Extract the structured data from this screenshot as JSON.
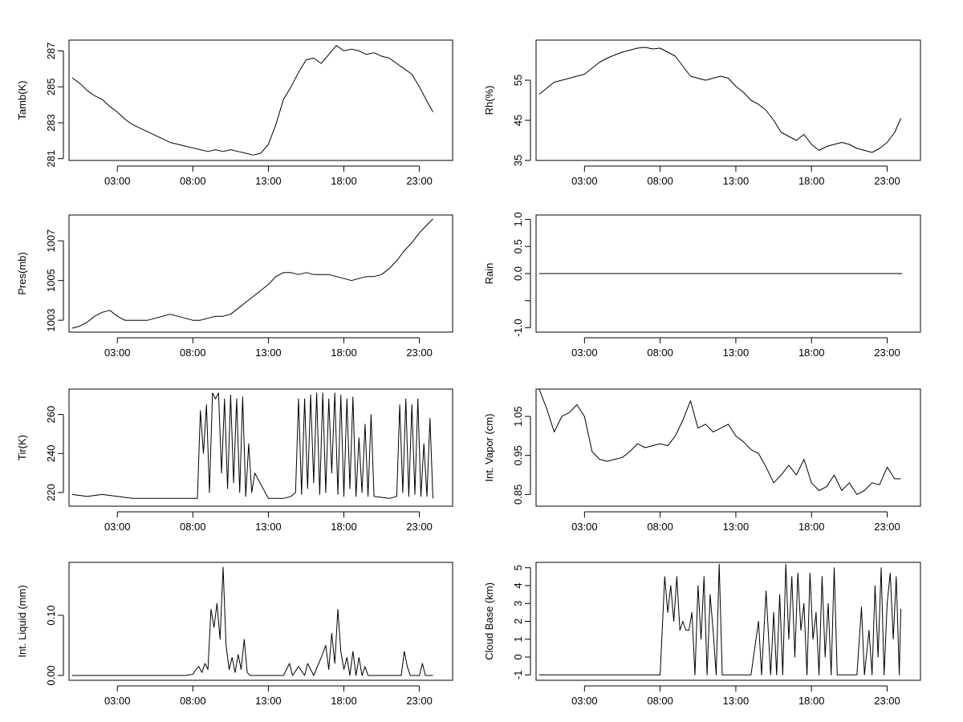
{
  "chart_data": [
    {
      "type": "line",
      "ylabel": "Tamb(K)",
      "x_tick_labels": [
        "03:00",
        "08:00",
        "13:00",
        "18:00",
        "23:00"
      ],
      "x_ticks": [
        3,
        8,
        13,
        18,
        23
      ],
      "xlim": [
        -0.2,
        25.2
      ],
      "ylim": [
        280.9,
        287.6
      ],
      "y_ticks": [
        281,
        283,
        285,
        287
      ],
      "y_tick_labels": [
        "281",
        "283",
        "285",
        "287"
      ],
      "series": [
        {
          "x": [
            0.0,
            0.5,
            1.0,
            1.5,
            2.0,
            2.5,
            3.0,
            3.5,
            4.0,
            4.5,
            5.0,
            5.5,
            6.0,
            6.5,
            7.0,
            7.5,
            8.0,
            8.5,
            9.0,
            9.5,
            10.0,
            10.5,
            11.0,
            11.5,
            12.0,
            12.5,
            13.0,
            13.5,
            14.0,
            14.5,
            15.0,
            15.5,
            16.0,
            16.5,
            17.0,
            17.5,
            18.0,
            18.5,
            19.0,
            19.5,
            20.0,
            20.5,
            21.0,
            21.5,
            22.0,
            22.5,
            23.0,
            23.5,
            23.9
          ],
          "values": [
            285.5,
            285.2,
            284.8,
            284.5,
            284.3,
            283.9,
            283.6,
            283.2,
            282.9,
            282.7,
            282.5,
            282.3,
            282.1,
            281.9,
            281.8,
            281.7,
            281.6,
            281.5,
            281.4,
            281.5,
            281.4,
            281.5,
            281.4,
            281.3,
            281.2,
            281.3,
            281.8,
            282.9,
            284.3,
            285.0,
            285.8,
            286.5,
            286.6,
            286.3,
            286.8,
            287.3,
            287.0,
            287.1,
            287.0,
            286.8,
            286.9,
            286.7,
            286.6,
            286.3,
            286.0,
            285.7,
            285.0,
            284.2,
            283.6
          ]
        }
      ]
    },
    {
      "type": "line",
      "ylabel": "Rh(%)",
      "x_tick_labels": [
        "03:00",
        "08:00",
        "13:00",
        "18:00",
        "23:00"
      ],
      "x_ticks": [
        3,
        8,
        13,
        18,
        23
      ],
      "xlim": [
        -0.2,
        25.2
      ],
      "ylim": [
        35,
        65
      ],
      "y_ticks": [
        35,
        45,
        55
      ],
      "y_tick_labels": [
        "35",
        "45",
        "55"
      ],
      "series": [
        {
          "x": [
            0.0,
            0.5,
            1.0,
            1.5,
            2.0,
            2.5,
            3.0,
            3.5,
            4.0,
            4.5,
            5.0,
            5.5,
            6.0,
            6.5,
            7.0,
            7.5,
            8.0,
            8.5,
            9.0,
            9.5,
            10.0,
            10.5,
            11.0,
            11.5,
            12.0,
            12.5,
            13.0,
            13.5,
            14.0,
            14.5,
            15.0,
            15.5,
            16.0,
            16.5,
            17.0,
            17.5,
            18.0,
            18.5,
            19.0,
            19.5,
            20.0,
            20.5,
            21.0,
            21.5,
            22.0,
            22.5,
            23.0,
            23.5,
            23.9
          ],
          "values": [
            51.5,
            53.0,
            54.5,
            55.0,
            55.5,
            56.0,
            56.5,
            58.0,
            59.5,
            60.5,
            61.3,
            62.0,
            62.5,
            63.0,
            63.2,
            62.8,
            63.0,
            62.0,
            61.0,
            58.5,
            56.0,
            55.5,
            55.0,
            55.5,
            56.0,
            55.5,
            53.5,
            52.0,
            50.0,
            49.0,
            47.5,
            45.0,
            42.0,
            41.0,
            40.0,
            41.5,
            39.0,
            37.5,
            38.5,
            39.0,
            39.5,
            39.0,
            38.0,
            37.5,
            37.0,
            38.0,
            39.5,
            42.0,
            45.5
          ]
        }
      ]
    },
    {
      "type": "line",
      "ylabel": "Pres(mb)",
      "x_tick_labels": [
        "03:00",
        "08:00",
        "13:00",
        "18:00",
        "23:00"
      ],
      "x_ticks": [
        3,
        8,
        13,
        18,
        23
      ],
      "xlim": [
        -0.2,
        25.2
      ],
      "ylim": [
        1002.4,
        1008.3
      ],
      "y_ticks": [
        1003,
        1005,
        1007
      ],
      "y_tick_labels": [
        "1003",
        "1005",
        "1007"
      ],
      "series": [
        {
          "x": [
            0.0,
            0.5,
            1.0,
            1.5,
            2.0,
            2.5,
            3.0,
            3.5,
            4.0,
            4.5,
            5.0,
            5.5,
            6.0,
            6.5,
            7.0,
            7.5,
            8.0,
            8.5,
            9.0,
            9.5,
            10.0,
            10.5,
            11.0,
            11.5,
            12.0,
            12.5,
            13.0,
            13.5,
            14.0,
            14.5,
            15.0,
            15.5,
            16.0,
            16.5,
            17.0,
            17.5,
            18.0,
            18.5,
            19.0,
            19.5,
            20.0,
            20.5,
            21.0,
            21.5,
            22.0,
            22.5,
            23.0,
            23.5,
            23.9
          ],
          "values": [
            1002.6,
            1002.7,
            1002.9,
            1003.2,
            1003.4,
            1003.5,
            1003.2,
            1003.0,
            1003.0,
            1003.0,
            1003.0,
            1003.1,
            1003.2,
            1003.3,
            1003.2,
            1003.1,
            1003.0,
            1003.0,
            1003.1,
            1003.2,
            1003.2,
            1003.3,
            1003.6,
            1003.9,
            1004.2,
            1004.5,
            1004.8,
            1005.2,
            1005.4,
            1005.4,
            1005.3,
            1005.4,
            1005.3,
            1005.3,
            1005.3,
            1005.2,
            1005.1,
            1005.0,
            1005.1,
            1005.2,
            1005.2,
            1005.3,
            1005.6,
            1006.0,
            1006.5,
            1006.9,
            1007.4,
            1007.8,
            1008.1
          ]
        }
      ]
    },
    {
      "type": "line",
      "ylabel": "Rain",
      "x_tick_labels": [
        "03:00",
        "08:00",
        "13:00",
        "18:00",
        "23:00"
      ],
      "x_ticks": [
        3,
        8,
        13,
        18,
        23
      ],
      "xlim": [
        -0.2,
        25.2
      ],
      "ylim": [
        -1.08,
        1.08
      ],
      "y_ticks": [
        -1.0,
        -0.5,
        0.0,
        0.5,
        1.0
      ],
      "y_tick_labels": [
        "-1.0",
        "",
        "0.0",
        "0.5",
        "1.0"
      ],
      "series": [
        {
          "x": [
            0.0,
            24.0
          ],
          "values": [
            0,
            0
          ]
        }
      ]
    },
    {
      "type": "line",
      "ylabel": "Tir(K)",
      "x_tick_labels": [
        "03:00",
        "08:00",
        "13:00",
        "18:00",
        "23:00"
      ],
      "x_ticks": [
        3,
        8,
        13,
        18,
        23
      ],
      "xlim": [
        -0.2,
        25.2
      ],
      "ylim": [
        213,
        273
      ],
      "y_ticks": [
        220,
        240,
        260
      ],
      "y_tick_labels": [
        "220",
        "240",
        "260"
      ],
      "series": [
        {
          "x": [
            0.0,
            1.0,
            2.0,
            3.0,
            4.0,
            5.0,
            6.0,
            7.0,
            8.0,
            8.3,
            8.5,
            8.7,
            8.9,
            9.1,
            9.3,
            9.5,
            9.7,
            9.9,
            10.1,
            10.3,
            10.5,
            10.7,
            10.9,
            11.1,
            11.3,
            11.5,
            11.7,
            11.9,
            12.1,
            13.0,
            14.0,
            14.5,
            14.8,
            15.0,
            15.2,
            15.4,
            15.6,
            15.8,
            16.0,
            16.2,
            16.4,
            16.6,
            16.8,
            17.0,
            17.2,
            17.4,
            17.6,
            17.8,
            18.0,
            18.2,
            18.4,
            18.6,
            18.8,
            19.0,
            19.2,
            19.4,
            19.6,
            19.8,
            20.0,
            21.0,
            21.5,
            21.7,
            21.9,
            22.1,
            22.3,
            22.5,
            22.7,
            22.9,
            23.1,
            23.3,
            23.5,
            23.7,
            23.9
          ],
          "values": [
            219,
            218,
            219,
            218,
            217,
            217,
            217,
            217,
            217,
            217,
            262,
            240,
            265,
            220,
            271,
            268,
            271,
            230,
            268,
            222,
            270,
            225,
            268,
            220,
            269,
            218,
            245,
            220,
            230,
            217,
            217,
            218,
            220,
            268,
            219,
            268,
            222,
            270,
            225,
            271,
            219,
            271,
            220,
            268,
            230,
            271,
            219,
            270,
            218,
            268,
            222,
            269,
            218,
            248,
            220,
            255,
            218,
            260,
            218,
            217,
            218,
            265,
            220,
            268,
            218,
            265,
            219,
            268,
            218,
            245,
            218,
            258,
            217
          ]
        }
      ]
    },
    {
      "type": "line",
      "ylabel": "Int. Vapor (cm)",
      "x_tick_labels": [
        "03:00",
        "08:00",
        "13:00",
        "18:00",
        "23:00"
      ],
      "x_ticks": [
        3,
        8,
        13,
        18,
        23
      ],
      "xlim": [
        -0.2,
        25.2
      ],
      "ylim": [
        0.82,
        1.12
      ],
      "y_ticks": [
        0.85,
        0.95,
        1.05
      ],
      "y_tick_labels": [
        "0.85",
        "0.95",
        "1.05"
      ],
      "series": [
        {
          "x": [
            0.0,
            0.5,
            1.0,
            1.5,
            2.0,
            2.5,
            3.0,
            3.5,
            4.0,
            4.5,
            5.0,
            5.5,
            6.0,
            6.5,
            7.0,
            7.5,
            8.0,
            8.5,
            9.0,
            9.5,
            10.0,
            10.5,
            11.0,
            11.5,
            12.0,
            12.5,
            13.0,
            13.5,
            14.0,
            14.5,
            15.0,
            15.5,
            16.0,
            16.5,
            17.0,
            17.5,
            18.0,
            18.5,
            19.0,
            19.5,
            20.0,
            20.5,
            21.0,
            21.5,
            22.0,
            22.5,
            23.0,
            23.5,
            23.9
          ],
          "values": [
            1.12,
            1.07,
            1.01,
            1.05,
            1.06,
            1.08,
            1.05,
            0.96,
            0.94,
            0.935,
            0.94,
            0.945,
            0.96,
            0.98,
            0.97,
            0.975,
            0.98,
            0.975,
            1.0,
            1.04,
            1.09,
            1.02,
            1.03,
            1.01,
            1.02,
            1.03,
            1.0,
            0.985,
            0.965,
            0.955,
            0.92,
            0.88,
            0.9,
            0.925,
            0.9,
            0.94,
            0.88,
            0.86,
            0.87,
            0.9,
            0.86,
            0.88,
            0.85,
            0.86,
            0.88,
            0.875,
            0.92,
            0.89,
            0.89
          ]
        }
      ]
    },
    {
      "type": "line",
      "ylabel": "Int. Liquid (mm)",
      "x_tick_labels": [
        "03:00",
        "08:00",
        "13:00",
        "18:00",
        "23:00"
      ],
      "x_ticks": [
        3,
        8,
        13,
        18,
        23
      ],
      "xlim": [
        -0.2,
        25.2
      ],
      "ylim": [
        -0.008,
        0.188
      ],
      "y_ticks": [
        0.0,
        0.1
      ],
      "y_tick_labels": [
        "0.00",
        "0.10"
      ],
      "series": [
        {
          "x": [
            0.0,
            7.0,
            7.5,
            8.0,
            8.2,
            8.4,
            8.6,
            8.8,
            9.0,
            9.2,
            9.4,
            9.6,
            9.8,
            10.0,
            10.2,
            10.4,
            10.6,
            10.8,
            11.0,
            11.2,
            11.4,
            11.6,
            11.8,
            12.0,
            14.0,
            14.4,
            14.6,
            15.0,
            15.4,
            15.6,
            16.0,
            16.5,
            16.8,
            17.0,
            17.2,
            17.4,
            17.6,
            17.8,
            18.0,
            18.2,
            18.4,
            18.6,
            18.8,
            19.0,
            19.2,
            19.4,
            19.6,
            20.0,
            21.8,
            22.0,
            22.2,
            22.4,
            22.6,
            23.0,
            23.2,
            23.4,
            23.9
          ],
          "values": [
            0.0,
            0.0,
            0.0,
            0.002,
            0.01,
            0.015,
            0.005,
            0.02,
            0.01,
            0.11,
            0.08,
            0.12,
            0.06,
            0.18,
            0.05,
            0.01,
            0.03,
            0.005,
            0.035,
            0.01,
            0.06,
            0.005,
            0.0,
            0.0,
            0.0,
            0.02,
            0.0,
            0.015,
            0.0,
            0.02,
            0.0,
            0.03,
            0.05,
            0.01,
            0.07,
            0.02,
            0.11,
            0.04,
            0.01,
            0.03,
            0.0,
            0.04,
            0.0,
            0.03,
            0.0,
            0.015,
            0.0,
            0.0,
            0.0,
            0.04,
            0.015,
            0.0,
            0.0,
            0.0,
            0.02,
            0.0,
            0.0
          ]
        }
      ]
    },
    {
      "type": "line",
      "ylabel": "Cloud Base (km)",
      "x_tick_labels": [
        "03:00",
        "08:00",
        "13:00",
        "18:00",
        "23:00"
      ],
      "x_ticks": [
        3,
        8,
        13,
        18,
        23
      ],
      "xlim": [
        -0.2,
        25.2
      ],
      "ylim": [
        -1.3,
        5.3
      ],
      "y_ticks": [
        -1,
        0,
        1,
        2,
        3,
        4,
        5
      ],
      "y_tick_labels": [
        "-1",
        "0",
        "1",
        "2",
        "3",
        "4",
        "5"
      ],
      "series": [
        {
          "x": [
            0.0,
            8.0,
            8.3,
            8.5,
            8.7,
            8.9,
            9.1,
            9.3,
            9.5,
            9.7,
            9.9,
            10.1,
            10.3,
            10.5,
            10.7,
            10.9,
            11.1,
            11.3,
            11.5,
            11.7,
            11.9,
            12.1,
            14.0,
            14.5,
            14.7,
            15.0,
            15.3,
            15.5,
            15.7,
            15.9,
            16.1,
            16.3,
            16.5,
            16.7,
            16.9,
            17.1,
            17.3,
            17.5,
            17.7,
            17.9,
            18.1,
            18.3,
            18.5,
            18.7,
            18.9,
            19.1,
            19.3,
            19.5,
            19.7,
            20.0,
            21.0,
            21.3,
            21.5,
            21.8,
            22.0,
            22.2,
            22.4,
            22.6,
            22.8,
            23.0,
            23.2,
            23.4,
            23.6,
            23.8,
            23.9
          ],
          "values": [
            -1,
            -1,
            4.5,
            2.5,
            4.0,
            2.0,
            4.5,
            1.5,
            2.0,
            1.5,
            1.5,
            2.5,
            -1,
            4.0,
            1.0,
            4.5,
            -1,
            3.5,
            1.5,
            -1,
            5.2,
            -1,
            -1,
            2.0,
            -1,
            3.7,
            -1,
            2.5,
            -1,
            3.5,
            -1,
            5.2,
            1.0,
            4.5,
            0.0,
            4.7,
            1.5,
            3.0,
            -1,
            4.7,
            1.0,
            2.5,
            -1,
            4.5,
            0.0,
            3.0,
            -1,
            5.0,
            -1,
            -1,
            -1,
            2.8,
            -1,
            1.5,
            -1,
            4.0,
            0.0,
            5.0,
            -1,
            3.0,
            4.7,
            1.0,
            4.5,
            -1,
            2.7
          ]
        }
      ]
    }
  ]
}
